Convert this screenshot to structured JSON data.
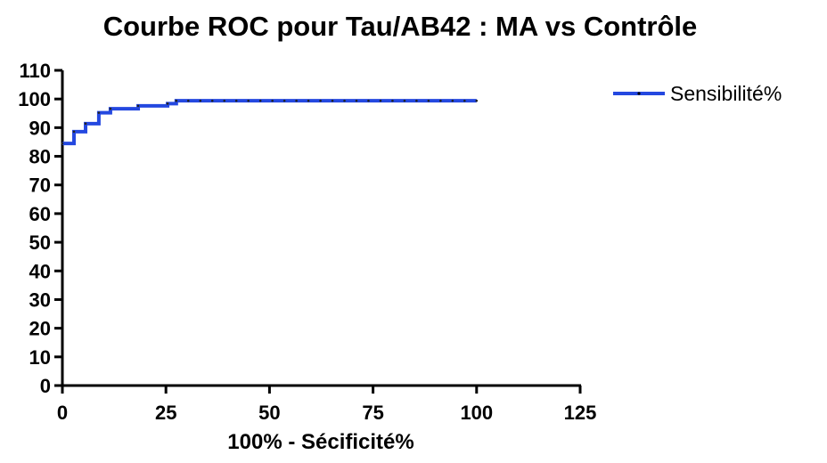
{
  "chart_data": {
    "type": "line",
    "title": "Courbe ROC pour Tau/AB42 : MA vs Contrôle",
    "xlabel": "100% - Sécificité%",
    "ylabel": "",
    "xlim": [
      0,
      125
    ],
    "ylim": [
      0,
      110
    ],
    "x_ticks": [
      "0",
      "25",
      "50",
      "75",
      "100",
      "125"
    ],
    "y_ticks": [
      "110",
      "100",
      "90",
      "80",
      "70",
      "60",
      "50",
      "40",
      "30",
      "20",
      "10",
      "0"
    ],
    "legend_position": "top-right",
    "grid": false,
    "series": [
      {
        "name": "Sensibilité%",
        "color": "#2448e0",
        "step": true,
        "x": [
          0,
          2.8,
          5.6,
          8.8,
          11.6,
          18.3,
          25.4,
          27.5,
          100
        ],
        "y": [
          84.5,
          88.6,
          91.4,
          95.2,
          96.6,
          97.6,
          98.4,
          99.4,
          99.4
        ]
      }
    ]
  }
}
